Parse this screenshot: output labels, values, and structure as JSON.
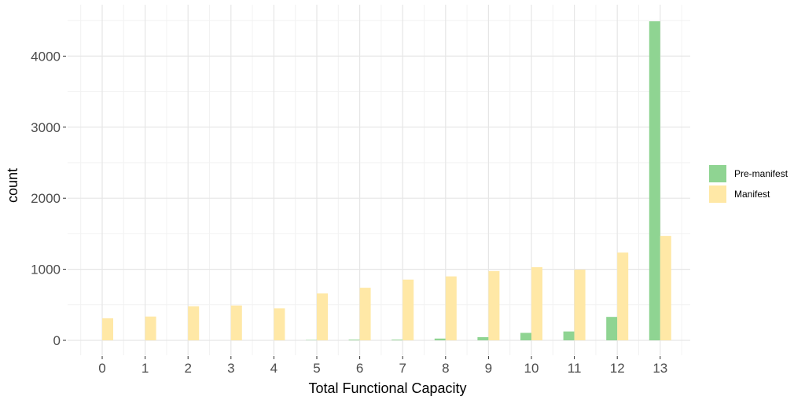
{
  "chart_data": {
    "type": "bar",
    "title": "",
    "xlabel": "Total Functional Capacity",
    "ylabel": "count",
    "categories": [
      "0",
      "1",
      "2",
      "3",
      "4",
      "5",
      "6",
      "7",
      "8",
      "9",
      "10",
      "11",
      "12",
      "13"
    ],
    "ylim": [
      -200,
      4750
    ],
    "yticks": [
      0,
      1000,
      2000,
      3000,
      4000
    ],
    "ytick_labels": [
      "0",
      "1000",
      "2000",
      "3000",
      "4000"
    ],
    "grid": true,
    "legend_position": "right",
    "series": [
      {
        "name": "Pre-manifest",
        "color": "#8fd492",
        "values": [
          0,
          0,
          0,
          0,
          0,
          5,
          10,
          10,
          25,
          45,
          105,
          125,
          330,
          4490
        ]
      },
      {
        "name": "Manifest",
        "color": "#ffe8a6",
        "values": [
          310,
          335,
          480,
          490,
          450,
          660,
          740,
          855,
          900,
          975,
          1030,
          995,
          1235,
          1470
        ]
      }
    ]
  }
}
